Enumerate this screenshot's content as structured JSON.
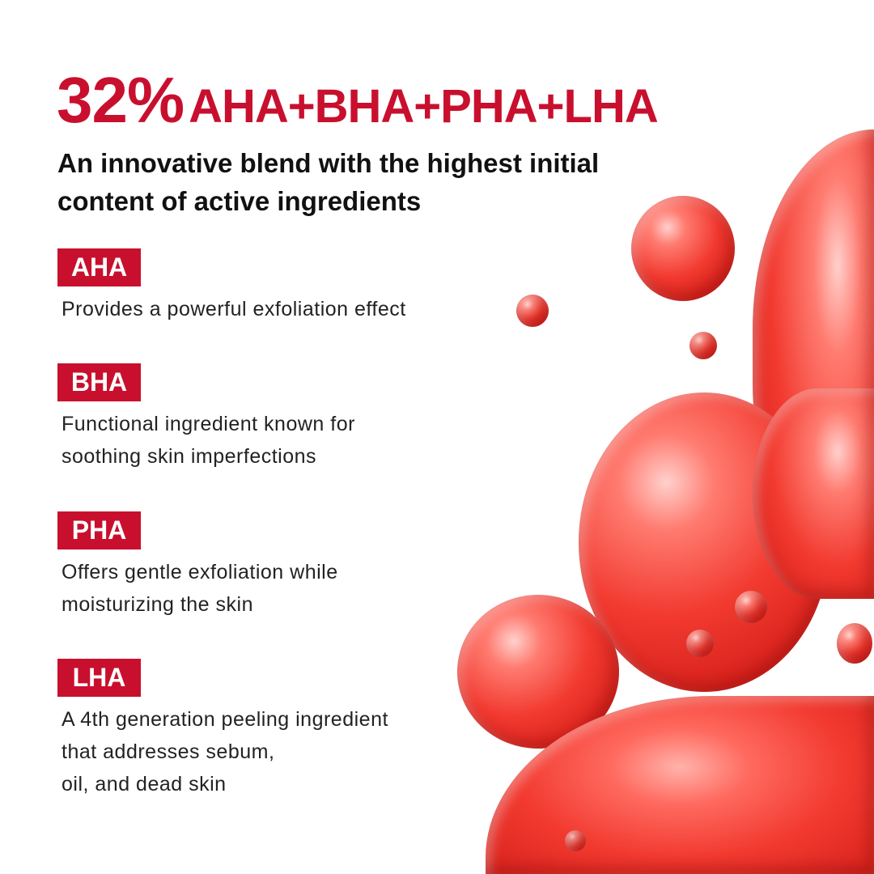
{
  "title": {
    "percent": "32%",
    "blend": "AHA+BHA+PHA+LHA"
  },
  "subtitle": "An innovative blend with the highest initial content of active ingredients",
  "ingredients": [
    {
      "tag": "AHA",
      "description": "Provides a powerful exfoliation effect"
    },
    {
      "tag": "BHA",
      "description": "Functional ingredient known for\nsoothing skin imperfections"
    },
    {
      "tag": "PHA",
      "description": "Offers gentle exfoliation while\nmoisturizing the skin"
    },
    {
      "tag": "LHA",
      "description": "A 4th generation peeling ingredient\nthat addresses sebum,\noil, and dead skin"
    }
  ],
  "colors": {
    "accent": "#c8102e",
    "text": "#111111",
    "bubbles": "#f23a30"
  }
}
